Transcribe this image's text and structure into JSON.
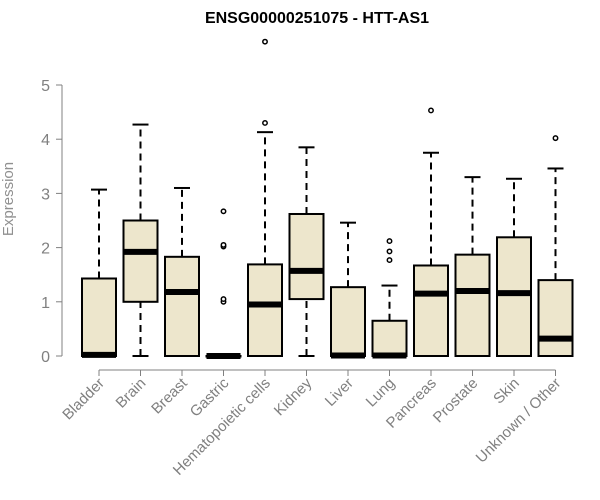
{
  "chart_data": {
    "type": "boxplot",
    "title": "ENSG00000251075 - HTT-AS1",
    "ylabel": "Expression",
    "xlabel": "",
    "ylim": [
      0,
      5.5
    ],
    "yticks": [
      0,
      1,
      2,
      3,
      4,
      5
    ],
    "box_color": "#ede6cc",
    "categories": [
      "Bladder",
      "Brain",
      "Breast",
      "Gastric",
      "Hematopoietic cells",
      "Kidney",
      "Liver",
      "Lung",
      "Pancreas",
      "Prostate",
      "Skin",
      "Unknown / Other"
    ],
    "boxes": [
      {
        "min": 0,
        "q1": 0,
        "median": 0.02,
        "q3": 1.43,
        "max": 3.07,
        "outliers": []
      },
      {
        "min": 0,
        "q1": 1.0,
        "median": 1.92,
        "q3": 2.5,
        "max": 4.27,
        "outliers": []
      },
      {
        "min": 0,
        "q1": 0,
        "median": 1.18,
        "q3": 1.83,
        "max": 3.1,
        "outliers": []
      },
      {
        "min": 0,
        "q1": 0,
        "median": 0.0,
        "q3": 0.0,
        "max": 0.0,
        "outliers": [
          1.0,
          1.05,
          2.02,
          2.05,
          2.67
        ]
      },
      {
        "min": 0,
        "q1": 0,
        "median": 0.95,
        "q3": 1.69,
        "max": 4.13,
        "outliers": [
          4.3,
          5.8
        ]
      },
      {
        "min": 0,
        "q1": 1.05,
        "median": 1.57,
        "q3": 2.62,
        "max": 3.85,
        "outliers": []
      },
      {
        "min": 0,
        "q1": 0,
        "median": 0.01,
        "q3": 1.27,
        "max": 2.46,
        "outliers": []
      },
      {
        "min": 0,
        "q1": 0,
        "median": 0.01,
        "q3": 0.65,
        "max": 1.3,
        "outliers": [
          1.77,
          1.93,
          2.12
        ]
      },
      {
        "min": 0,
        "q1": 0,
        "median": 1.15,
        "q3": 1.67,
        "max": 3.75,
        "outliers": [
          4.53
        ]
      },
      {
        "min": 0,
        "q1": 0,
        "median": 1.2,
        "q3": 1.87,
        "max": 3.3,
        "outliers": []
      },
      {
        "min": 0,
        "q1": 0,
        "median": 1.16,
        "q3": 2.19,
        "max": 3.27,
        "outliers": []
      },
      {
        "min": 0,
        "q1": 0,
        "median": 0.32,
        "q3": 1.4,
        "max": 3.46,
        "outliers": [
          4.02
        ]
      }
    ]
  }
}
